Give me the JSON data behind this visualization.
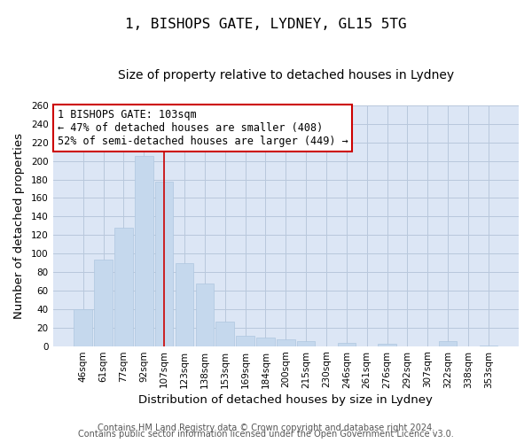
{
  "title": "1, BISHOPS GATE, LYDNEY, GL15 5TG",
  "subtitle": "Size of property relative to detached houses in Lydney",
  "xlabel": "Distribution of detached houses by size in Lydney",
  "ylabel": "Number of detached properties",
  "categories": [
    "46sqm",
    "61sqm",
    "77sqm",
    "92sqm",
    "107sqm",
    "123sqm",
    "138sqm",
    "153sqm",
    "169sqm",
    "184sqm",
    "200sqm",
    "215sqm",
    "230sqm",
    "246sqm",
    "261sqm",
    "276sqm",
    "292sqm",
    "307sqm",
    "322sqm",
    "338sqm",
    "353sqm"
  ],
  "values": [
    40,
    93,
    128,
    205,
    178,
    90,
    68,
    26,
    11,
    9,
    7,
    5,
    0,
    3,
    0,
    2,
    0,
    0,
    5,
    0,
    1
  ],
  "bar_color": "#c5d8ed",
  "bar_edge_color": "#aec6df",
  "marker_bar_index": 4,
  "marker_line_color": "#cc0000",
  "ylim": [
    0,
    260
  ],
  "yticks": [
    0,
    20,
    40,
    60,
    80,
    100,
    120,
    140,
    160,
    180,
    200,
    220,
    240,
    260
  ],
  "annotation_title": "1 BISHOPS GATE: 103sqm",
  "annotation_line1": "← 47% of detached houses are smaller (408)",
  "annotation_line2": "52% of semi-detached houses are larger (449) →",
  "annotation_box_facecolor": "#ffffff",
  "annotation_box_edgecolor": "#cc0000",
  "footer1": "Contains HM Land Registry data © Crown copyright and database right 2024.",
  "footer2": "Contains public sector information licensed under the Open Government Licence v3.0.",
  "plot_bg_color": "#dce6f5",
  "fig_bg_color": "#ffffff",
  "grid_color": "#b8c8dc",
  "title_fontsize": 11.5,
  "subtitle_fontsize": 10,
  "axis_label_fontsize": 9.5,
  "tick_fontsize": 7.5,
  "annotation_fontsize": 8.5,
  "footer_fontsize": 7
}
